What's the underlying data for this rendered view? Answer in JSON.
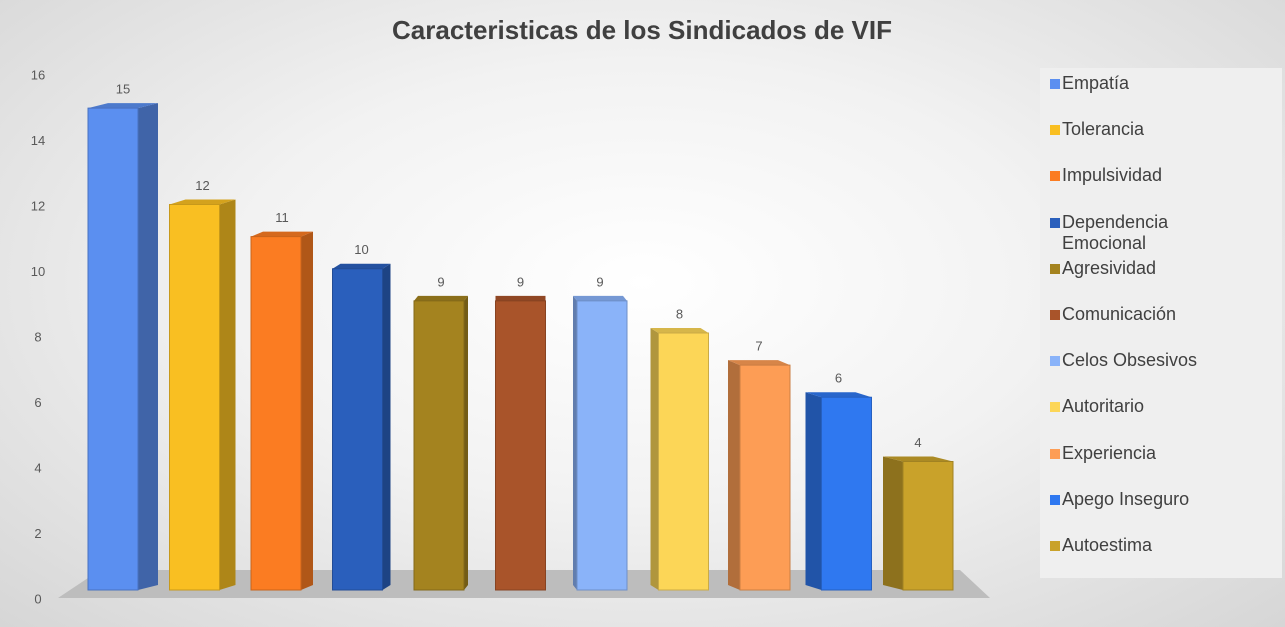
{
  "chart_data": {
    "type": "bar3d",
    "title": "Caracteristicas de los Sindicados de VIF",
    "series": [
      {
        "name": "Empatía",
        "color": "#5b8ff0",
        "values": [
          15
        ]
      },
      {
        "name": "Tolerancia",
        "color": "#f9bf22",
        "values": [
          12
        ]
      },
      {
        "name": "Impulsividad",
        "color": "#fb7c22",
        "values": [
          11
        ]
      },
      {
        "name": "Dependencia Emocional",
        "color": "#2a5fbc",
        "values": [
          10
        ]
      },
      {
        "name": "Agresividad",
        "color": "#a4831f",
        "values": [
          9
        ]
      },
      {
        "name": "Comunicación",
        "color": "#a9542a",
        "values": [
          9
        ]
      },
      {
        "name": "Celos Obsesivos",
        "color": "#8ab3f9",
        "values": [
          9
        ]
      },
      {
        "name": "Autoritario",
        "color": "#fcd657",
        "values": [
          8
        ]
      },
      {
        "name": "Experiencia",
        "color": "#fd9d55",
        "values": [
          7
        ]
      },
      {
        "name": "Apego Inseguro",
        "color": "#2f78f0",
        "values": [
          6
        ]
      },
      {
        "name": "Autoestima",
        "color": "#c9a22a",
        "values": [
          4
        ]
      }
    ],
    "ylim": [
      0,
      16
    ],
    "yticks": [
      0,
      2,
      4,
      6,
      8,
      10,
      12,
      14,
      16
    ],
    "legend": "right"
  }
}
